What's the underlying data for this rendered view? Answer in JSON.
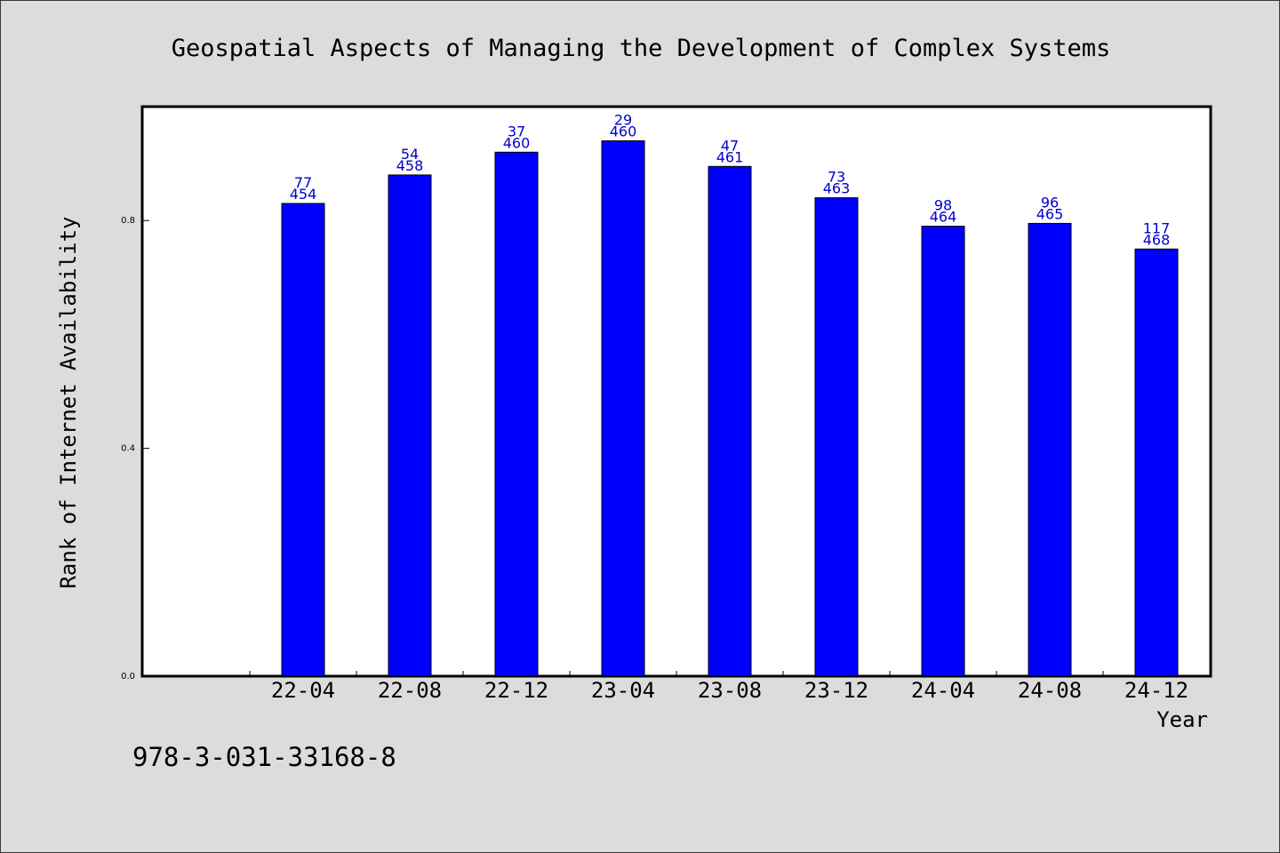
{
  "chart_data": {
    "type": "bar",
    "title": "Geospatial Aspects of Managing the Development of Complex Systems",
    "xlabel": "Year",
    "ylabel": "Rank of Internet Availability",
    "categories": [
      "22-04",
      "22-08",
      "22-12",
      "23-04",
      "23-08",
      "23-12",
      "24-04",
      "24-08",
      "24-12"
    ],
    "values": [
      0.83,
      0.88,
      0.92,
      0.94,
      0.895,
      0.84,
      0.79,
      0.795,
      0.75
    ],
    "label_top": [
      "77",
      "54",
      "37",
      "29",
      "47",
      "73",
      "98",
      "96",
      "117"
    ],
    "label_bottom": [
      "454",
      "458",
      "460",
      "460",
      "461",
      "463",
      "464",
      "465",
      "468"
    ],
    "ylim": [
      0,
      1.0
    ],
    "yticks": [
      "0.0",
      "0.4",
      "0.8"
    ],
    "ytick_values": [
      0.0,
      0.4,
      0.8
    ],
    "grid": false,
    "bar_color": "#0000ff",
    "label_color": "#0000cc"
  },
  "footer": {
    "isbn": "978-3-031-33168-8"
  }
}
